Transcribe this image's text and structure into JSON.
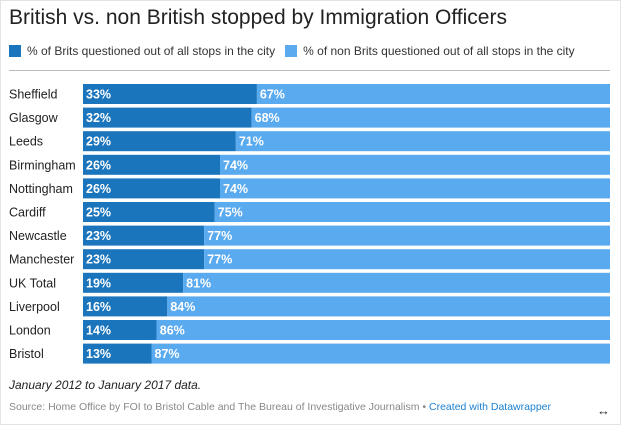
{
  "title": "British vs. non British stopped by Immigration Officers",
  "legend": [
    {
      "label": "% of Brits questioned out of all stops in the city",
      "color": "#1a75bc"
    },
    {
      "label": "% of non Brits questioned out of all stops in the city",
      "color": "#5aaaf0"
    }
  ],
  "chart_data": {
    "type": "bar",
    "orientation": "horizontal",
    "stacked": true,
    "categories": [
      "Sheffield",
      "Glasgow",
      "Leeds",
      "Birmingham",
      "Nottingham",
      "Cardiff",
      "Newcastle",
      "Manchester",
      "UK Total",
      "Liverpool",
      "London",
      "Bristol"
    ],
    "series": [
      {
        "name": "% of Brits questioned out of all stops in the city",
        "color": "#1a75bc",
        "values": [
          33,
          32,
          29,
          26,
          26,
          25,
          23,
          23,
          19,
          16,
          14,
          13
        ]
      },
      {
        "name": "% of non Brits questioned out of all stops in the city",
        "color": "#5aaaf0",
        "values": [
          67,
          68,
          71,
          74,
          74,
          75,
          77,
          77,
          81,
          84,
          86,
          87
        ]
      }
    ],
    "value_suffix": "%",
    "xlim": [
      0,
      100
    ],
    "grid": false,
    "legend_position": "top-left"
  },
  "note": "January 2012 to January 2017 data.",
  "footer": {
    "source": "Source: Home Office by FOI to Bristol Cable and The Bureau of Investigative Journalism",
    "separator": "•",
    "credit": "Created with Datawrapper"
  },
  "resize_icon": "↔"
}
